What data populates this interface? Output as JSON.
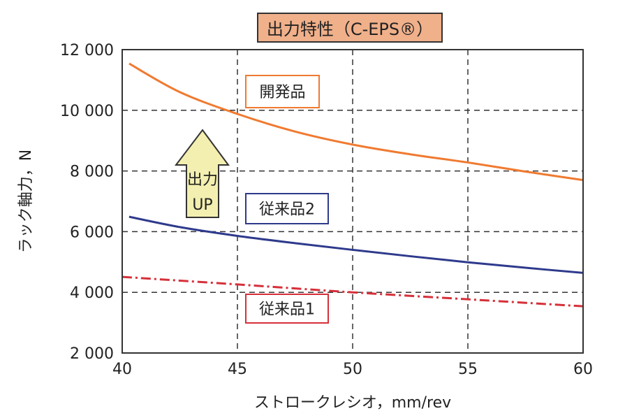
{
  "chart_data": {
    "type": "line",
    "title": "出力特性（C-EPS®）",
    "xlabel": "ストロークレシオ，mm/rev",
    "ylabel": "ラック軸力，N",
    "xlim": [
      40,
      60
    ],
    "ylim": [
      2000,
      12000
    ],
    "xticks": [
      40,
      45,
      50,
      55,
      60
    ],
    "yticks": [
      2000,
      4000,
      6000,
      8000,
      10000,
      12000
    ],
    "ytick_labels": [
      "2 000",
      "4 000",
      "6 000",
      "8 000",
      "10 000",
      "12 000"
    ],
    "grid": true,
    "series": [
      {
        "name": "開発品",
        "color": "#f07a30",
        "style": "solid",
        "x": [
          40.3,
          42.5,
          45,
          47.5,
          50,
          52.5,
          55,
          57.5,
          60
        ],
        "y": [
          11540,
          10600,
          9880,
          9300,
          8870,
          8550,
          8280,
          7980,
          7700
        ]
      },
      {
        "name": "従来品2",
        "color": "#2e3a8c",
        "style": "solid",
        "x": [
          40.3,
          42.5,
          45,
          47.5,
          50,
          52.5,
          55,
          57.5,
          60
        ],
        "y": [
          6490,
          6150,
          5860,
          5620,
          5400,
          5190,
          4990,
          4810,
          4640
        ]
      },
      {
        "name": "従来品1",
        "color": "#d6303a",
        "style": "dash-dot",
        "x": [
          40,
          45,
          50,
          55,
          60
        ],
        "y": [
          4510,
          4260,
          4000,
          3770,
          3540
        ]
      }
    ],
    "annotation": {
      "lines": [
        "出力",
        "UP"
      ],
      "fill": "#f3efb0"
    },
    "title_box_color": "#f0b08a"
  }
}
